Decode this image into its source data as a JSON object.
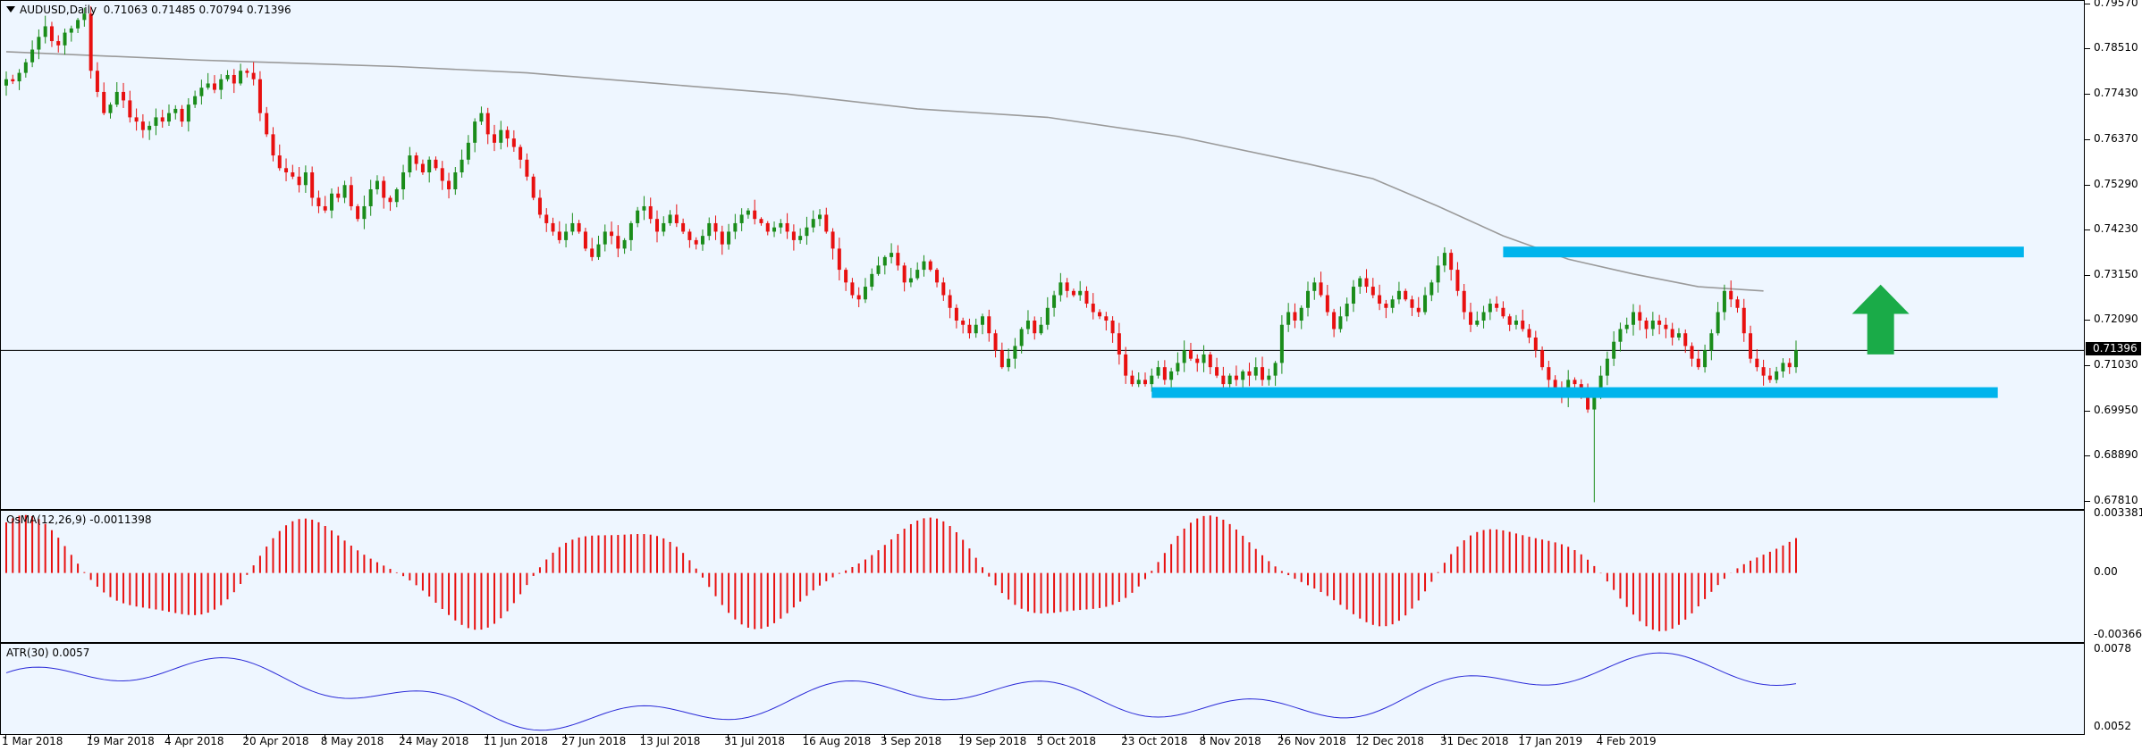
{
  "symbol_title": "AUDUSD,Daily  0.71063 0.71485 0.70794 0.71396",
  "osma_title": "OsMA(12,26,9) -0.0011398",
  "atr_title": "ATR(30) 0.0057",
  "current_price_label": "0.71396",
  "colors": {
    "background": "#eef6ff",
    "bull": "#1a8c1a",
    "bear": "#e81010",
    "ma": "#9a9a9a",
    "zone": "#00b4ec",
    "arrow": "#1aab48",
    "atr": "#2a2ad8",
    "osma": "#e81010"
  },
  "chart_data": [
    {
      "type": "candlestick",
      "title": "AUDUSD,Daily",
      "y_ticks": [
        "0.79570",
        "0.78510",
        "0.77430",
        "0.76370",
        "0.75290",
        "0.74230",
        "0.73150",
        "0.72090",
        "0.71030",
        "0.69950",
        "0.68890",
        "0.67810"
      ],
      "ylim": [
        0.6765,
        0.7965
      ],
      "x_ticks": [
        "1 Mar 2018",
        "19 Mar 2018",
        "4 Apr 2018",
        "20 Apr 2018",
        "8 May 2018",
        "24 May 2018",
        "11 Jun 2018",
        "27 Jun 2018",
        "13 Jul 2018",
        "31 Jul 2018",
        "16 Aug 2018",
        "3 Sep 2018",
        "19 Sep 2018",
        "5 Oct 2018",
        "23 Oct 2018",
        "8 Nov 2018",
        "26 Nov 2018",
        "12 Dec 2018",
        "31 Dec 2018",
        "17 Jan 2019",
        "4 Feb 2019"
      ],
      "x_range": [
        "1 Mar 2018",
        "18 Feb 2019"
      ],
      "current_price": 0.71396,
      "closes": [
        0.778,
        0.7775,
        0.7795,
        0.782,
        0.785,
        0.788,
        0.7905,
        0.787,
        0.786,
        0.789,
        0.79,
        0.792,
        0.7935,
        0.78,
        0.775,
        0.77,
        0.772,
        0.775,
        0.773,
        0.769,
        0.768,
        0.766,
        0.767,
        0.769,
        0.768,
        0.77,
        0.771,
        0.768,
        0.772,
        0.774,
        0.776,
        0.777,
        0.7755,
        0.778,
        0.779,
        0.777,
        0.78,
        0.7795,
        0.778,
        0.77,
        0.765,
        0.76,
        0.757,
        0.756,
        0.755,
        0.753,
        0.756,
        0.75,
        0.748,
        0.747,
        0.751,
        0.75,
        0.753,
        0.748,
        0.745,
        0.748,
        0.752,
        0.754,
        0.75,
        0.749,
        0.752,
        0.756,
        0.76,
        0.758,
        0.756,
        0.759,
        0.757,
        0.754,
        0.752,
        0.756,
        0.759,
        0.763,
        0.768,
        0.77,
        0.765,
        0.763,
        0.766,
        0.764,
        0.762,
        0.759,
        0.755,
        0.75,
        0.746,
        0.744,
        0.742,
        0.74,
        0.742,
        0.744,
        0.742,
        0.738,
        0.736,
        0.739,
        0.742,
        0.741,
        0.738,
        0.74,
        0.744,
        0.747,
        0.748,
        0.745,
        0.742,
        0.744,
        0.746,
        0.744,
        0.742,
        0.74,
        0.739,
        0.741,
        0.744,
        0.742,
        0.739,
        0.742,
        0.744,
        0.746,
        0.747,
        0.745,
        0.744,
        0.742,
        0.743,
        0.744,
        0.742,
        0.74,
        0.741,
        0.743,
        0.745,
        0.746,
        0.742,
        0.738,
        0.733,
        0.73,
        0.727,
        0.726,
        0.729,
        0.732,
        0.734,
        0.736,
        0.737,
        0.734,
        0.73,
        0.731,
        0.733,
        0.735,
        0.733,
        0.73,
        0.727,
        0.724,
        0.721,
        0.72,
        0.718,
        0.72,
        0.722,
        0.718,
        0.714,
        0.71,
        0.712,
        0.715,
        0.719,
        0.721,
        0.718,
        0.72,
        0.724,
        0.727,
        0.73,
        0.728,
        0.727,
        0.728,
        0.725,
        0.723,
        0.722,
        0.721,
        0.718,
        0.713,
        0.708,
        0.706,
        0.707,
        0.706,
        0.708,
        0.71,
        0.707,
        0.709,
        0.711,
        0.714,
        0.712,
        0.711,
        0.713,
        0.71,
        0.708,
        0.706,
        0.708,
        0.707,
        0.709,
        0.708,
        0.71,
        0.707,
        0.708,
        0.711,
        0.72,
        0.723,
        0.721,
        0.724,
        0.728,
        0.73,
        0.727,
        0.723,
        0.719,
        0.722,
        0.725,
        0.729,
        0.731,
        0.729,
        0.727,
        0.725,
        0.724,
        0.726,
        0.728,
        0.726,
        0.724,
        0.723,
        0.727,
        0.73,
        0.734,
        0.737,
        0.733,
        0.728,
        0.723,
        0.72,
        0.721,
        0.723,
        0.725,
        0.724,
        0.722,
        0.72,
        0.721,
        0.719,
        0.717,
        0.714,
        0.71,
        0.707,
        0.705,
        0.703,
        0.707,
        0.706,
        0.704,
        0.7,
        0.704,
        0.708,
        0.712,
        0.716,
        0.719,
        0.72,
        0.723,
        0.721,
        0.719,
        0.721,
        0.72,
        0.719,
        0.717,
        0.718,
        0.715,
        0.712,
        0.71,
        0.714,
        0.718,
        0.723,
        0.728,
        0.726,
        0.724,
        0.718,
        0.712,
        0.71,
        0.708,
        0.707,
        0.709,
        0.711,
        0.71,
        0.714
      ],
      "series": [
        {
          "name": "MA",
          "type": "line",
          "points": [
            [
              0,
              0.7845
            ],
            [
              30,
              0.7825
            ],
            [
              60,
              0.781
            ],
            [
              80,
              0.7795
            ],
            [
              100,
              0.777
            ],
            [
              120,
              0.7745
            ],
            [
              140,
              0.771
            ],
            [
              160,
              0.769
            ],
            [
              180,
              0.7645
            ],
            [
              200,
              0.758
            ],
            [
              210,
              0.7545
            ],
            [
              220,
              0.748
            ],
            [
              230,
              0.741
            ],
            [
              240,
              0.7355
            ],
            [
              250,
              0.732
            ],
            [
              260,
              0.729
            ],
            [
              270,
              0.728
            ]
          ]
        }
      ],
      "annotations": {
        "resistance_zone": {
          "y": 0.7372,
          "x_start": 230,
          "x_end": 310
        },
        "support_zone": {
          "y": 0.704,
          "x_start": 176,
          "x_end": 306
        },
        "arrow": {
          "direction": "up",
          "y_base": 0.713,
          "y_tip": 0.7295,
          "x": 288
        },
        "spike_low": 0.6781,
        "spike_index": 244
      }
    },
    {
      "type": "bar",
      "title": "OsMA(12,26,9) -0.0011398",
      "y_ticks": [
        "0.0033816",
        "0.00",
        "-0.0036634"
      ],
      "ylim": [
        -0.004,
        0.0036
      ]
    },
    {
      "type": "line",
      "title": "ATR(30) 0.0057",
      "y_ticks": [
        "0.0078",
        "0.0052"
      ],
      "ylim": [
        0.005,
        0.008
      ]
    }
  ]
}
